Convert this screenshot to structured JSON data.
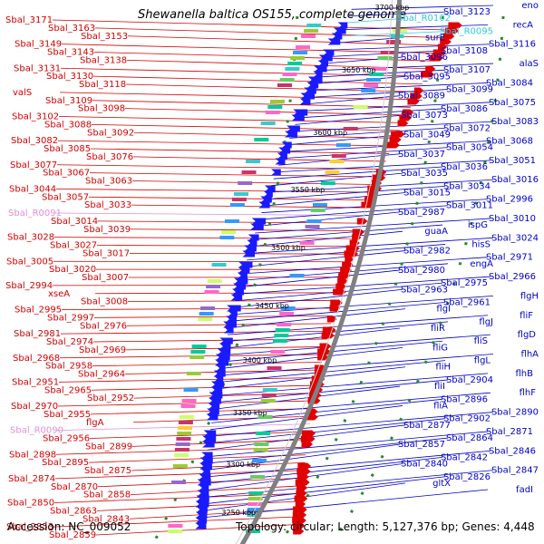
{
  "title": "Shewanella baltica OS155, complete genome",
  "footer": {
    "accession": "Accession: NC_009052",
    "stats": "Topology: circular; Length: 5,127,376 bp; Genes: 4,448"
  },
  "scale_labels": [
    "3700 kbp",
    "3650 kbp",
    "3600 kbp",
    "3550 kbp",
    "3500 kbp",
    "3450 kbp",
    "3400 kbp",
    "3350 kbp",
    "3300 kbp",
    "3250 kbp"
  ],
  "left_labels": [
    {
      "text": "Sbal_3171",
      "color": "#d40000"
    },
    {
      "text": "Sbal_3163",
      "color": "#d40000"
    },
    {
      "text": "Sbal_3153",
      "color": "#d40000"
    },
    {
      "text": "Sbal_3149",
      "color": "#d40000"
    },
    {
      "text": "Sbal_3143",
      "color": "#d40000"
    },
    {
      "text": "Sbal_3138",
      "color": "#d40000"
    },
    {
      "text": "Sbal_3131",
      "color": "#d40000"
    },
    {
      "text": "Sbal_3130",
      "color": "#d40000"
    },
    {
      "text": "Sbal_3118",
      "color": "#d40000"
    },
    {
      "text": "valS",
      "color": "#d40000"
    },
    {
      "text": "Sbal_3109",
      "color": "#d40000"
    },
    {
      "text": "Sbal_3098",
      "color": "#d40000"
    },
    {
      "text": "Sbal_3102",
      "color": "#d40000"
    },
    {
      "text": "Sbal_3088",
      "color": "#d40000"
    },
    {
      "text": "Sbal_3092",
      "color": "#d40000"
    },
    {
      "text": "Sbal_3082",
      "color": "#d40000"
    },
    {
      "text": "Sbal_3085",
      "color": "#d40000"
    },
    {
      "text": "Sbal_3076",
      "color": "#d40000"
    },
    {
      "text": "Sbal_3077",
      "color": "#d40000"
    },
    {
      "text": "Sbal_3067",
      "color": "#d40000"
    },
    {
      "text": "Sbal_3063",
      "color": "#d40000"
    },
    {
      "text": "Sbal_3044",
      "color": "#d40000"
    },
    {
      "text": "Sbal_3057",
      "color": "#d40000"
    },
    {
      "text": "Sbal_3033",
      "color": "#d40000"
    },
    {
      "text": "Sbal_R0091",
      "color": "#e08fd8"
    },
    {
      "text": "Sbal_3014",
      "color": "#d40000"
    },
    {
      "text": "Sbal_3039",
      "color": "#d40000"
    },
    {
      "text": "Sbal_3028",
      "color": "#d40000"
    },
    {
      "text": "Sbal_3027",
      "color": "#d40000"
    },
    {
      "text": "Sbal_3017",
      "color": "#d40000"
    },
    {
      "text": "Sbal_3005",
      "color": "#d40000"
    },
    {
      "text": "Sbal_3020",
      "color": "#d40000"
    },
    {
      "text": "Sbal_3007",
      "color": "#d40000"
    },
    {
      "text": "Sbal_2994",
      "color": "#d40000"
    },
    {
      "text": "xseA",
      "color": "#d40000"
    },
    {
      "text": "Sbal_3008",
      "color": "#d40000"
    },
    {
      "text": "Sbal_2995",
      "color": "#d40000"
    },
    {
      "text": "Sbal_2997",
      "color": "#d40000"
    },
    {
      "text": "Sbal_2976",
      "color": "#d40000"
    },
    {
      "text": "Sbal_2981",
      "color": "#d40000"
    },
    {
      "text": "Sbal_2974",
      "color": "#d40000"
    },
    {
      "text": "Sbal_2969",
      "color": "#d40000"
    },
    {
      "text": "Sbal_2968",
      "color": "#d40000"
    },
    {
      "text": "Sbal_2958",
      "color": "#d40000"
    },
    {
      "text": "Sbal_2964",
      "color": "#d40000"
    },
    {
      "text": "Sbal_2951",
      "color": "#d40000"
    },
    {
      "text": "Sbal_2965",
      "color": "#d40000"
    },
    {
      "text": "Sbal_2952",
      "color": "#d40000"
    },
    {
      "text": "Sbal_2970",
      "color": "#d40000"
    },
    {
      "text": "Sbal_2955",
      "color": "#d40000"
    },
    {
      "text": "flgA",
      "color": "#d40000"
    },
    {
      "text": "Sbal_R0090",
      "color": "#e08fd8"
    },
    {
      "text": "Sbal_2956",
      "color": "#d40000"
    },
    {
      "text": "Sbal_2899",
      "color": "#d40000"
    },
    {
      "text": "Sbal_2898",
      "color": "#d40000"
    },
    {
      "text": "Sbal_2895",
      "color": "#d40000"
    },
    {
      "text": "Sbal_2875",
      "color": "#d40000"
    },
    {
      "text": "Sbal_2874",
      "color": "#d40000"
    },
    {
      "text": "Sbal_2870",
      "color": "#d40000"
    },
    {
      "text": "Sbal_2858",
      "color": "#d40000"
    },
    {
      "text": "Sbal_2850",
      "color": "#d40000"
    },
    {
      "text": "Sbal_2863",
      "color": "#d40000"
    },
    {
      "text": "Sbal_2843",
      "color": "#d40000"
    },
    {
      "text": "Sbal_2853",
      "color": "#d40000"
    },
    {
      "text": "Sbal_2859",
      "color": "#d40000"
    }
  ],
  "right_labels": [
    {
      "text": "eno",
      "color": "#0000c8"
    },
    {
      "text": "Sbal_3123",
      "color": "#0000c8"
    },
    {
      "text": "Sbal_R0102",
      "color": "#2ec8e0"
    },
    {
      "text": "recA",
      "color": "#0000c8"
    },
    {
      "text": "Sbal_R0095",
      "color": "#2ec8e0"
    },
    {
      "text": "surE",
      "color": "#0000c8"
    },
    {
      "text": "Sbal_3116",
      "color": "#0000c8"
    },
    {
      "text": "Sbal_3108",
      "color": "#0000c8"
    },
    {
      "text": "Sbal_3096",
      "color": "#0000c8"
    },
    {
      "text": "alaS",
      "color": "#0000c8"
    },
    {
      "text": "Sbal_3107",
      "color": "#0000c8"
    },
    {
      "text": "Sbal_3095",
      "color": "#0000c8"
    },
    {
      "text": "Sbal_3084",
      "color": "#0000c8"
    },
    {
      "text": "Sbal_3099",
      "color": "#0000c8"
    },
    {
      "text": "Sbal_3089",
      "color": "#0000c8"
    },
    {
      "text": "Sbal_3075",
      "color": "#0000c8"
    },
    {
      "text": "Sbal_3086",
      "color": "#0000c8"
    },
    {
      "text": "Sbal_3073",
      "color": "#0000c8"
    },
    {
      "text": "Sbal_3083",
      "color": "#0000c8"
    },
    {
      "text": "Sbal_3072",
      "color": "#0000c8"
    },
    {
      "text": "Sbal_3049",
      "color": "#0000c8"
    },
    {
      "text": "Sbal_3068",
      "color": "#0000c8"
    },
    {
      "text": "Sbal_3054",
      "color": "#0000c8"
    },
    {
      "text": "Sbal_3037",
      "color": "#0000c8"
    },
    {
      "text": "Sbal_3051",
      "color": "#0000c8"
    },
    {
      "text": "Sbal_3036",
      "color": "#0000c8"
    },
    {
      "text": "Sbal_3035",
      "color": "#0000c8"
    },
    {
      "text": "Sbal_3016",
      "color": "#0000c8"
    },
    {
      "text": "Sbal_3034",
      "color": "#0000c8"
    },
    {
      "text": "Sbal_3015",
      "color": "#0000c8"
    },
    {
      "text": "Sbal_2996",
      "color": "#0000c8"
    },
    {
      "text": "Sbal_3011",
      "color": "#0000c8"
    },
    {
      "text": "Sbal_2987",
      "color": "#0000c8"
    },
    {
      "text": "Sbal_3010",
      "color": "#0000c8"
    },
    {
      "text": "ispG",
      "color": "#0000c8"
    },
    {
      "text": "guaA",
      "color": "#0000c8"
    },
    {
      "text": "Sbal_3024",
      "color": "#0000c8"
    },
    {
      "text": "hisS",
      "color": "#0000c8"
    },
    {
      "text": "Sbal_2982",
      "color": "#0000c8"
    },
    {
      "text": "Sbal_2971",
      "color": "#0000c8"
    },
    {
      "text": "engA",
      "color": "#0000c8"
    },
    {
      "text": "Sbal_2980",
      "color": "#0000c8"
    },
    {
      "text": "Sbal_2966",
      "color": "#0000c8"
    },
    {
      "text": "Sbal_2975",
      "color": "#0000c8"
    },
    {
      "text": "Sbal_2963",
      "color": "#0000c8"
    },
    {
      "text": "flgH",
      "color": "#0000c8"
    },
    {
      "text": "Sbal_2961",
      "color": "#0000c8"
    },
    {
      "text": "flgI",
      "color": "#0000c8"
    },
    {
      "text": "fliF",
      "color": "#0000c8"
    },
    {
      "text": "flgJ",
      "color": "#0000c8"
    },
    {
      "text": "fliR",
      "color": "#0000c8"
    },
    {
      "text": "flgD",
      "color": "#0000c8"
    },
    {
      "text": "fliS",
      "color": "#0000c8"
    },
    {
      "text": "fliG",
      "color": "#0000c8"
    },
    {
      "text": "flhA",
      "color": "#0000c8"
    },
    {
      "text": "flgL",
      "color": "#0000c8"
    },
    {
      "text": "fliH",
      "color": "#0000c8"
    },
    {
      "text": "flhB",
      "color": "#0000c8"
    },
    {
      "text": "Sbal_2904",
      "color": "#0000c8"
    },
    {
      "text": "fliI",
      "color": "#0000c8"
    },
    {
      "text": "flhF",
      "color": "#0000c8"
    },
    {
      "text": "Sbal_2896",
      "color": "#0000c8"
    },
    {
      "text": "fliA",
      "color": "#0000c8"
    },
    {
      "text": "Sbal_2890",
      "color": "#0000c8"
    },
    {
      "text": "Sbal_2902",
      "color": "#0000c8"
    },
    {
      "text": "Sbal_2877",
      "color": "#0000c8"
    },
    {
      "text": "Sbal_2871",
      "color": "#0000c8"
    },
    {
      "text": "Sbal_2864",
      "color": "#0000c8"
    },
    {
      "text": "Sbal_2857",
      "color": "#0000c8"
    },
    {
      "text": "Sbal_2846",
      "color": "#0000c8"
    },
    {
      "text": "Sbal_2842",
      "color": "#0000c8"
    },
    {
      "text": "Sbal_2840",
      "color": "#0000c8"
    },
    {
      "text": "Sbal_2847",
      "color": "#0000c8"
    },
    {
      "text": "Sbal_2826",
      "color": "#0000c8"
    },
    {
      "text": "gltX",
      "color": "#0000c8"
    },
    {
      "text": "fadI",
      "color": "#0000c8"
    }
  ],
  "colors": {
    "forward_gene": "#e00000",
    "reverse_gene": "#1a1aff",
    "backbone": "#808080",
    "tick_dots": "#2a8a2a",
    "left_leader": "#d40000",
    "right_leader": "#0000c8"
  }
}
